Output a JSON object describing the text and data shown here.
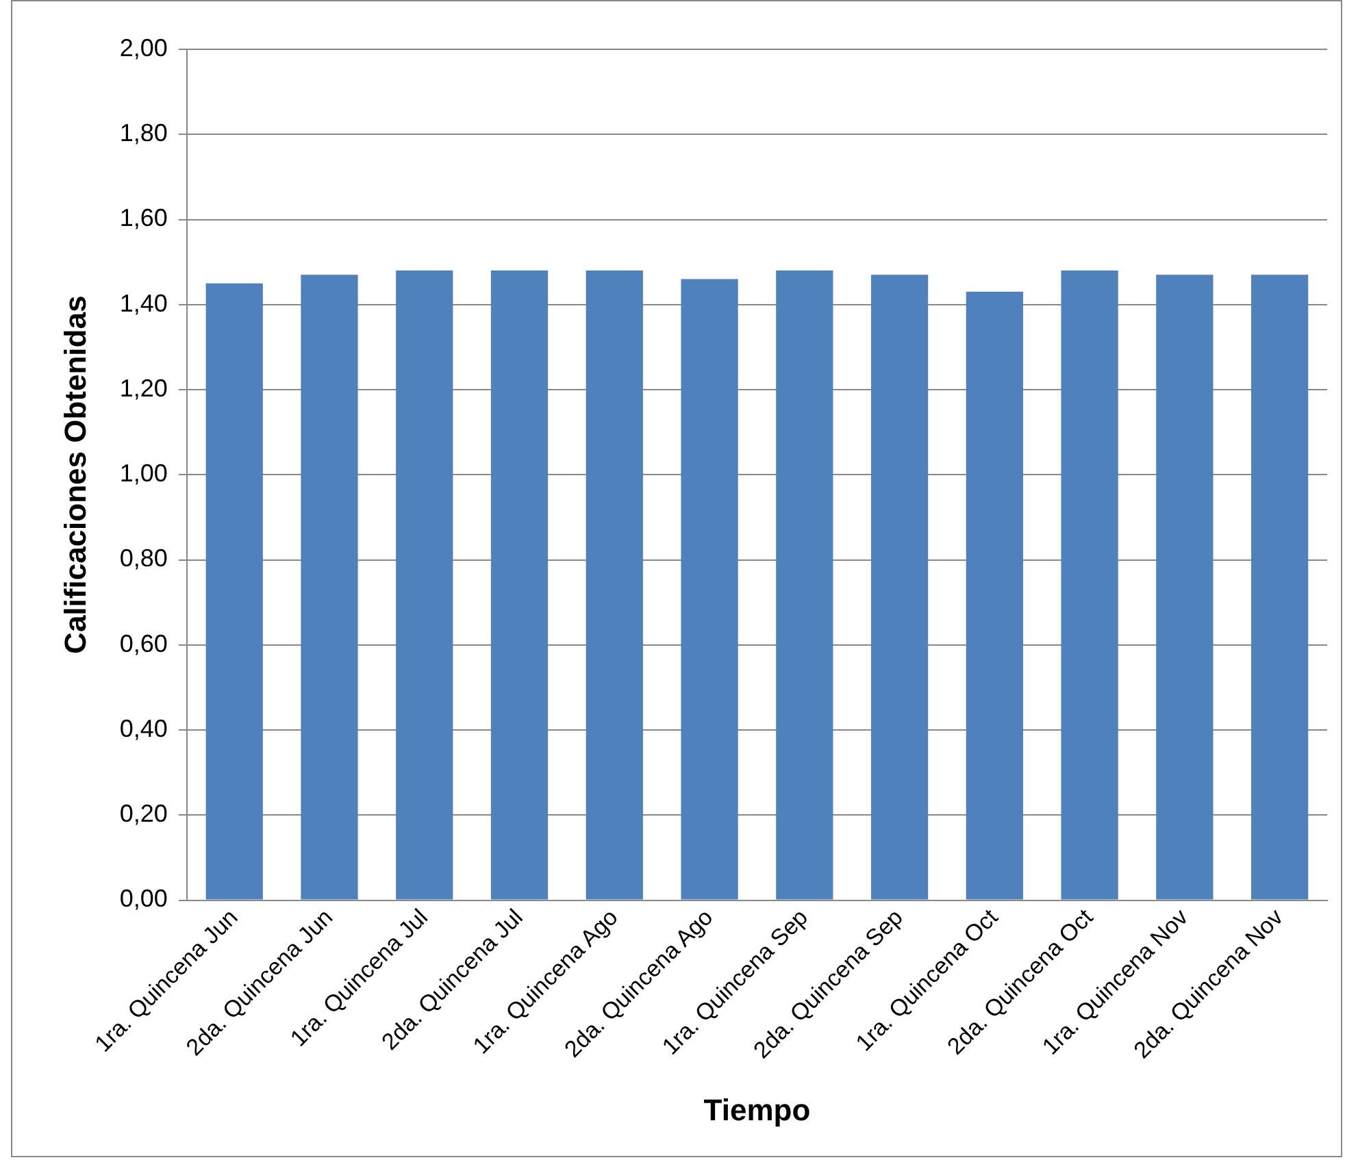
{
  "chart_data": {
    "type": "bar",
    "xlabel": "Tiempo",
    "ylabel": "Calificaciones Obtenidas",
    "categories": [
      "1ra. Quincena Jun",
      "2da. Quincena Jun",
      "1ra. Quincena Jul",
      "2da. Quincena Jul",
      "1ra. Quincena Ago",
      "2da. Quincena Ago",
      "1ra. Quincena Sep",
      "2da. Quincena Sep",
      "1ra. Quincena Oct",
      "2da. Quincena Oct",
      "1ra. Quincena Nov",
      "2da. Quincena Nov"
    ],
    "values": [
      1.45,
      1.47,
      1.48,
      1.48,
      1.48,
      1.46,
      1.48,
      1.47,
      1.43,
      1.48,
      1.47,
      1.47
    ],
    "color": "#4f81bd",
    "ylim": [
      0,
      2
    ],
    "yticks": [
      {
        "value": 0,
        "label": "0,00"
      },
      {
        "value": 0.2,
        "label": "0,20"
      },
      {
        "value": 0.4,
        "label": "0,40"
      },
      {
        "value": 0.6,
        "label": "0,60"
      },
      {
        "value": 0.8,
        "label": "0,80"
      },
      {
        "value": 1,
        "label": "1,00"
      },
      {
        "value": 1.2,
        "label": "1,20"
      },
      {
        "value": 1.4,
        "label": "1,40"
      },
      {
        "value": 1.6,
        "label": "1,60"
      },
      {
        "value": 1.8,
        "label": "1,80"
      },
      {
        "value": 2,
        "label": "2,00"
      }
    ],
    "grid": "y",
    "legend": false
  }
}
